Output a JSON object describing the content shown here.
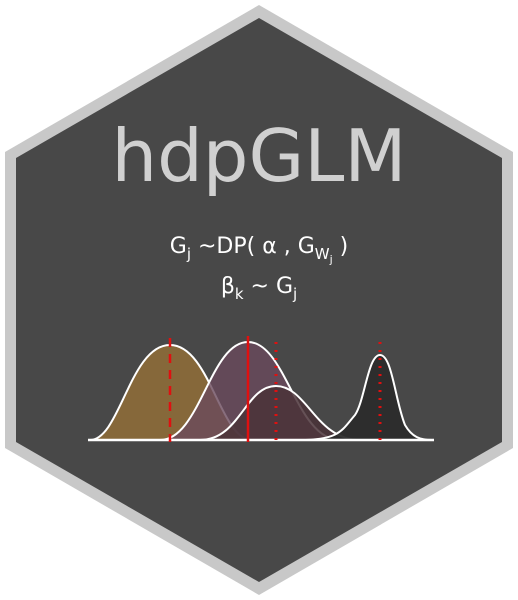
{
  "logo": {
    "title": "hdpGLM",
    "formula_line1": {
      "g": "G",
      "g_sub": "j",
      "mid": " ~DP( α , G",
      "w": "W",
      "w_sub": "j",
      "close": " )"
    },
    "formula_line2": {
      "beta": "β",
      "beta_sub": "k",
      "mid": " ~ G",
      "g_sub": "j"
    },
    "colors": {
      "hex_border": "#c8c8c8",
      "hex_fill": "#484848",
      "title": "#d0d0d0",
      "formula": "#ffffff",
      "curve_outline": "#ffffff",
      "mean_line": "#e01010",
      "fill_1": "#8a6a3a",
      "fill_2": "#6a4a5c",
      "fill_3": "#4a3238",
      "fill_4": "#2c2c2c"
    },
    "icons": [
      "hexagon-badge-icon",
      "density-curves-icon"
    ]
  }
}
